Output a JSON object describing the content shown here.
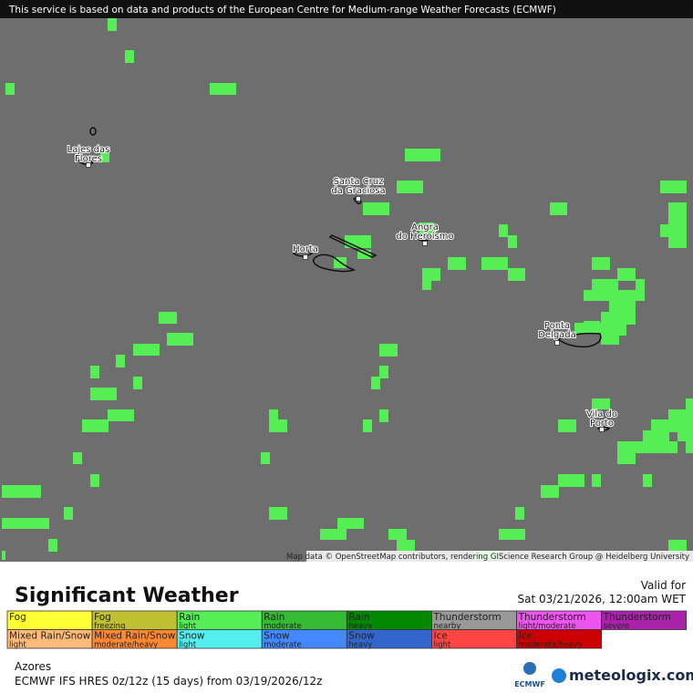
{
  "banner": "This service is based on data and products of the European Centre for Medium-range Weather Forecasts (ECMWF)",
  "places": [
    {
      "lines": [
        "Lajes das",
        "Flores"
      ]
    },
    {
      "lines": [
        "Santa Cruz",
        "da Graciosa"
      ]
    },
    {
      "lines": [
        "Angra",
        "do Heroísmo"
      ]
    },
    {
      "lines": [
        "Horta"
      ]
    },
    {
      "lines": [
        "Ponta",
        "Delgada"
      ]
    },
    {
      "lines": [
        "Vila do",
        "Porto"
      ]
    }
  ],
  "attribution": "Map data © OpenStreetMap contributors, rendering GIScience Research Group @ Heidelberg University",
  "title": "Significant Weather",
  "valid_label": "Valid for",
  "valid_time": "Sat 03/21/2026, 12:00am WET",
  "legend": [
    [
      {
        "name": "Fog",
        "color": "#ffff33"
      },
      {
        "name": "Fog",
        "sub": "freezing",
        "color": "#c0c030"
      },
      {
        "name": "Rain",
        "sub": "light",
        "color": "#55ee55"
      },
      {
        "name": "Rain",
        "sub": "moderate",
        "color": "#33bb33"
      },
      {
        "name": "Rain",
        "sub": "heavy",
        "color": "#008800"
      },
      {
        "name": "Thunderstorm",
        "sub": "nearby",
        "color": "#999999"
      },
      {
        "name": "Thunderstorm",
        "sub": "light/moderate",
        "color": "#ee55ee"
      },
      {
        "name": "Thunderstorm",
        "sub": "severe",
        "color": "#aa22aa"
      }
    ],
    [
      {
        "name": "Mixed Rain/Snow",
        "sub": "light",
        "color": "#ffbb77"
      },
      {
        "name": "Mixed Rain/Snow",
        "sub": "moderate/heavy",
        "color": "#ff8833"
      },
      {
        "name": "Snow",
        "sub": "light",
        "color": "#55eeee"
      },
      {
        "name": "Snow",
        "sub": "moderate",
        "color": "#4488ff"
      },
      {
        "name": "Snow",
        "sub": "heavy",
        "color": "#3366cc"
      },
      {
        "name": "Ice",
        "sub": "light",
        "color": "#ff4444"
      },
      {
        "name": "Ice",
        "sub": "moderate/heavy",
        "color": "#cc0000"
      }
    ]
  ],
  "region": "Azores",
  "model": "ECMWF IFS HRES 0z/12z (15 days) from  03/19/2026/12z",
  "ecmwf_logo": "ECMWF",
  "brand": "meteologix.com"
}
